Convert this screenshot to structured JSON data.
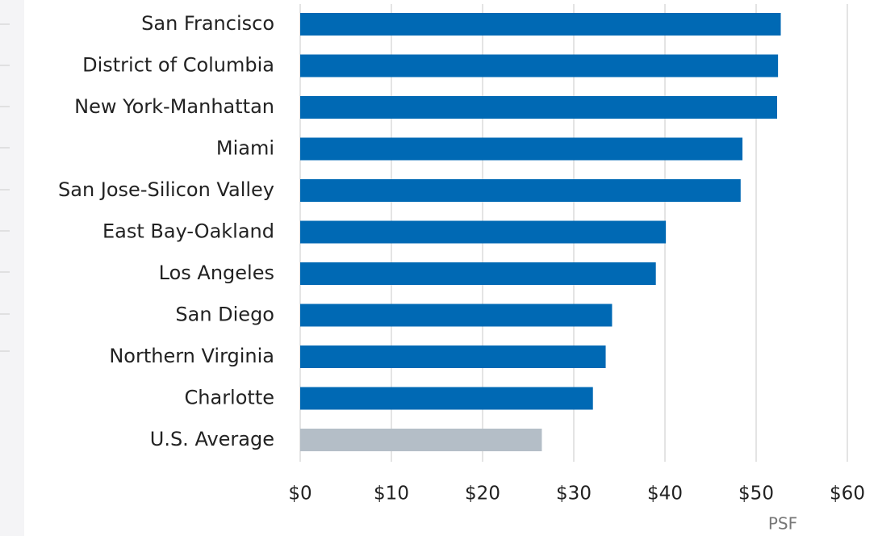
{
  "chart_data": {
    "type": "bar",
    "orientation": "horizontal",
    "categories": [
      "San Francisco",
      "District of Columbia",
      "New York-Manhattan",
      "Miami",
      "San Jose-Silicon Valley",
      "East Bay-Oakland",
      "Los Angeles",
      "San Diego",
      "Northern Virginia",
      "Charlotte",
      "U.S. Average"
    ],
    "values": [
      52.7,
      52.4,
      52.3,
      48.5,
      48.3,
      40.1,
      39.0,
      34.2,
      33.5,
      32.1,
      26.5
    ],
    "colors": [
      "#0069b4",
      "#0069b4",
      "#0069b4",
      "#0069b4",
      "#0069b4",
      "#0069b4",
      "#0069b4",
      "#0069b4",
      "#0069b4",
      "#0069b4",
      "#b4bec7"
    ],
    "xlabel": "PSF",
    "xlim": [
      0,
      60
    ],
    "xticks": [
      {
        "value": 0,
        "label": "$0"
      },
      {
        "value": 10,
        "label": "$10"
      },
      {
        "value": 20,
        "label": "$20"
      },
      {
        "value": 30,
        "label": "$30"
      },
      {
        "value": 40,
        "label": "$40"
      },
      {
        "value": 50,
        "label": "$50"
      },
      {
        "value": 60,
        "label": "$60"
      }
    ],
    "grid": true
  }
}
